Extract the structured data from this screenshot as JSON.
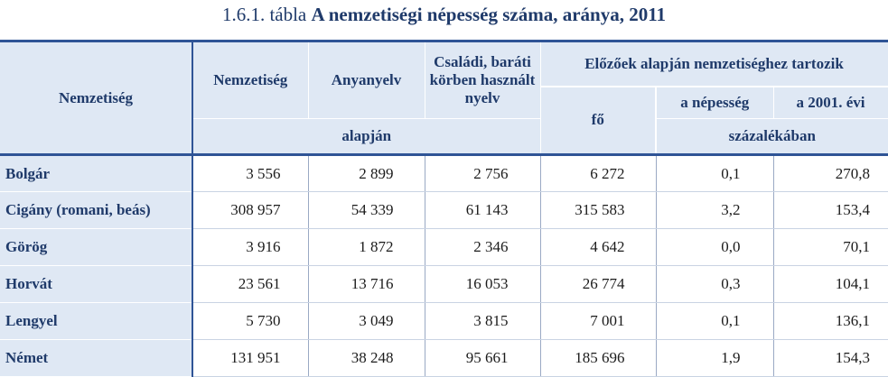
{
  "title": {
    "label": "1.6.1. tábla",
    "text": "A nemzetiségi népesség száma, aránya, 2011"
  },
  "header": {
    "nemzetiseg_row": "Nemzetiség",
    "nemzetiseg_col": "Nemzetiség",
    "anyanyelv": "Anyanyelv",
    "csaladi": "Családi, baráti körben használt nyelv",
    "elozoek": "Előzőek alapján nemzetiséghez tartozik",
    "fo": "fő",
    "a_nepesseg": "a népesség",
    "ev_2001": "a 2001. évi",
    "alapjan": "alapján",
    "szazalekaban": "százalékában"
  },
  "rows": [
    {
      "name": "Bolgár",
      "nemzetiseg": "3 556",
      "anyanyelv": "2 899",
      "csaladi": "2 756",
      "fo": "6 272",
      "nepesseg": "0,1",
      "ev2001": "270,8"
    },
    {
      "name": "Cigány (romani, beás)",
      "nemzetiseg": "308 957",
      "anyanyelv": "54 339",
      "csaladi": "61 143",
      "fo": "315 583",
      "nepesseg": "3,2",
      "ev2001": "153,4"
    },
    {
      "name": "Görög",
      "nemzetiseg": "3 916",
      "anyanyelv": "1 872",
      "csaladi": "2 346",
      "fo": "4 642",
      "nepesseg": "0,0",
      "ev2001": "70,1"
    },
    {
      "name": "Horvát",
      "nemzetiseg": "23 561",
      "anyanyelv": "13 716",
      "csaladi": "16 053",
      "fo": "26 774",
      "nepesseg": "0,3",
      "ev2001": "104,1"
    },
    {
      "name": "Lengyel",
      "nemzetiseg": "5 730",
      "anyanyelv": "3 049",
      "csaladi": "3 815",
      "fo": "7 001",
      "nepesseg": "0,1",
      "ev2001": "136,1"
    },
    {
      "name": "Német",
      "nemzetiseg": "131 951",
      "anyanyelv": "38 248",
      "csaladi": "95 661",
      "fo": "185 696",
      "nepesseg": "1,9",
      "ev2001": "154,3"
    }
  ]
}
